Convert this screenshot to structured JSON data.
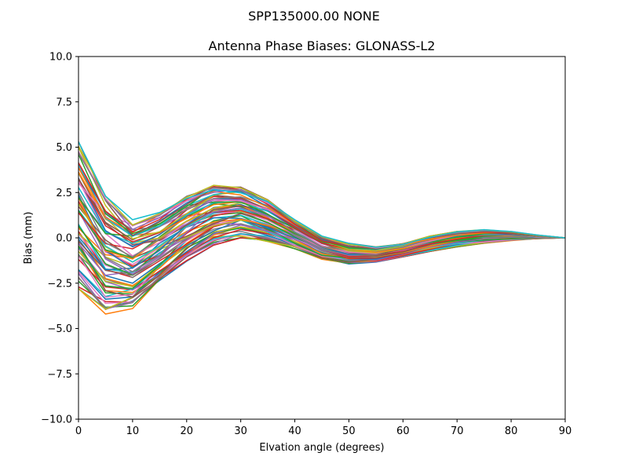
{
  "suptitle": "SPP135000.00    NONE",
  "chart_data": {
    "type": "line",
    "title": "Antenna Phase Biases: GLONASS-L2",
    "xlabel": "Elvation angle (degrees)",
    "ylabel": "Bias (mm)",
    "xlim": [
      0,
      90
    ],
    "ylim": [
      -10,
      10
    ],
    "grid": false,
    "legend": "none",
    "x_ticks": [
      "0",
      "10",
      "20",
      "30",
      "40",
      "50",
      "60",
      "70",
      "80",
      "90"
    ],
    "y_ticks": [
      "−10.0",
      "−7.5",
      "−5.0",
      "−2.5",
      "0.0",
      "2.5",
      "5.0",
      "7.5",
      "10.0"
    ],
    "x": [
      0,
      5,
      10,
      15,
      20,
      25,
      30,
      35,
      40,
      45,
      50,
      55,
      60,
      65,
      70,
      75,
      80,
      85,
      90
    ],
    "envelope": {
      "upper": [
        5.3,
        2.3,
        1.0,
        1.4,
        2.3,
        2.9,
        2.8,
        2.1,
        1.0,
        0.1,
        -0.3,
        -0.5,
        -0.3,
        0.1,
        0.35,
        0.45,
        0.35,
        0.15,
        0.0
      ],
      "lower": [
        -2.8,
        -4.2,
        -3.9,
        -2.5,
        -1.3,
        -0.4,
        0.0,
        -0.2,
        -0.6,
        -1.2,
        -1.45,
        -1.35,
        -1.05,
        -0.75,
        -0.5,
        -0.3,
        -0.15,
        -0.05,
        0.0
      ]
    },
    "series_count": 70,
    "series_colors": [
      "#1f77b4",
      "#ff7f0e",
      "#2ca02c",
      "#d62728",
      "#9467bd",
      "#8c564b",
      "#e377c2",
      "#7f7f7f",
      "#bcbd22",
      "#17becf"
    ]
  }
}
